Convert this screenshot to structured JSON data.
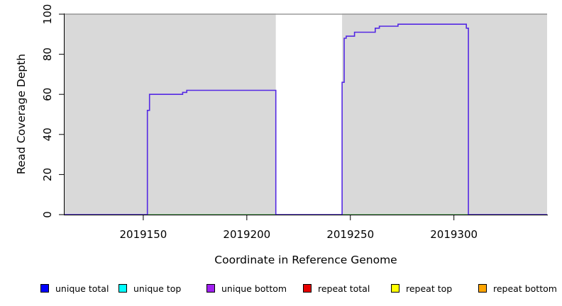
{
  "chart_data": {
    "type": "line",
    "title": "",
    "xlabel": "Coordinate in Reference Genome",
    "ylabel": "Read Coverage Depth",
    "xlim": [
      2019112,
      2019345
    ],
    "ylim": [
      0,
      100
    ],
    "x_ticks": [
      2019150,
      2019200,
      2019250,
      2019300
    ],
    "y_ticks": [
      0,
      20,
      40,
      60,
      80,
      100
    ],
    "grid": false,
    "legend_position": "bottom",
    "gap_region": {
      "x_start": 2019214,
      "x_end": 2019246,
      "color": "#FFFFFF"
    },
    "colors": {
      "plot_bg": "#D9D9D9",
      "axis": "#000000",
      "cap_line": "#9B9B9B",
      "baseline": "#47B34D",
      "coverage_line": "#5429E3"
    },
    "series": [
      {
        "name": "zero-baseline",
        "color": "#47B34D",
        "width": 1.2,
        "points": [
          [
            2019112,
            0
          ],
          [
            2019345,
            0
          ]
        ]
      },
      {
        "name": "cap-line-100",
        "color": "#9B9B9B",
        "width": 1.4,
        "points": [
          [
            2019112,
            100
          ],
          [
            2019345,
            100
          ]
        ]
      },
      {
        "name": "unique-coverage-steps",
        "color": "#5429E3",
        "width": 1.6,
        "points": [
          [
            2019112,
            0
          ],
          [
            2019152,
            0
          ],
          [
            2019152,
            52
          ],
          [
            2019153,
            52
          ],
          [
            2019153,
            60
          ],
          [
            2019169,
            60
          ],
          [
            2019169,
            61
          ],
          [
            2019171,
            61
          ],
          [
            2019171,
            62
          ],
          [
            2019214,
            62
          ],
          [
            2019214,
            0
          ],
          [
            2019246,
            0
          ],
          [
            2019246,
            66
          ],
          [
            2019247,
            66
          ],
          [
            2019247,
            88
          ],
          [
            2019248,
            88
          ],
          [
            2019248,
            89
          ],
          [
            2019252,
            89
          ],
          [
            2019252,
            91
          ],
          [
            2019262,
            91
          ],
          [
            2019262,
            93
          ],
          [
            2019264,
            93
          ],
          [
            2019264,
            94
          ],
          [
            2019273,
            94
          ],
          [
            2019273,
            95
          ],
          [
            2019306,
            95
          ],
          [
            2019306,
            93
          ],
          [
            2019307,
            93
          ],
          [
            2019307,
            0
          ],
          [
            2019345,
            0
          ]
        ]
      }
    ],
    "legend": [
      {
        "label": "unique total",
        "color": "#0000FF"
      },
      {
        "label": "unique top",
        "color": "#00FFFF"
      },
      {
        "label": "unique bottom",
        "color": "#A020F0"
      },
      {
        "label": "repeat total",
        "color": "#E60000"
      },
      {
        "label": "repeat top",
        "color": "#FFFF00"
      },
      {
        "label": "repeat bottom",
        "color": "#FFA500"
      }
    ]
  }
}
